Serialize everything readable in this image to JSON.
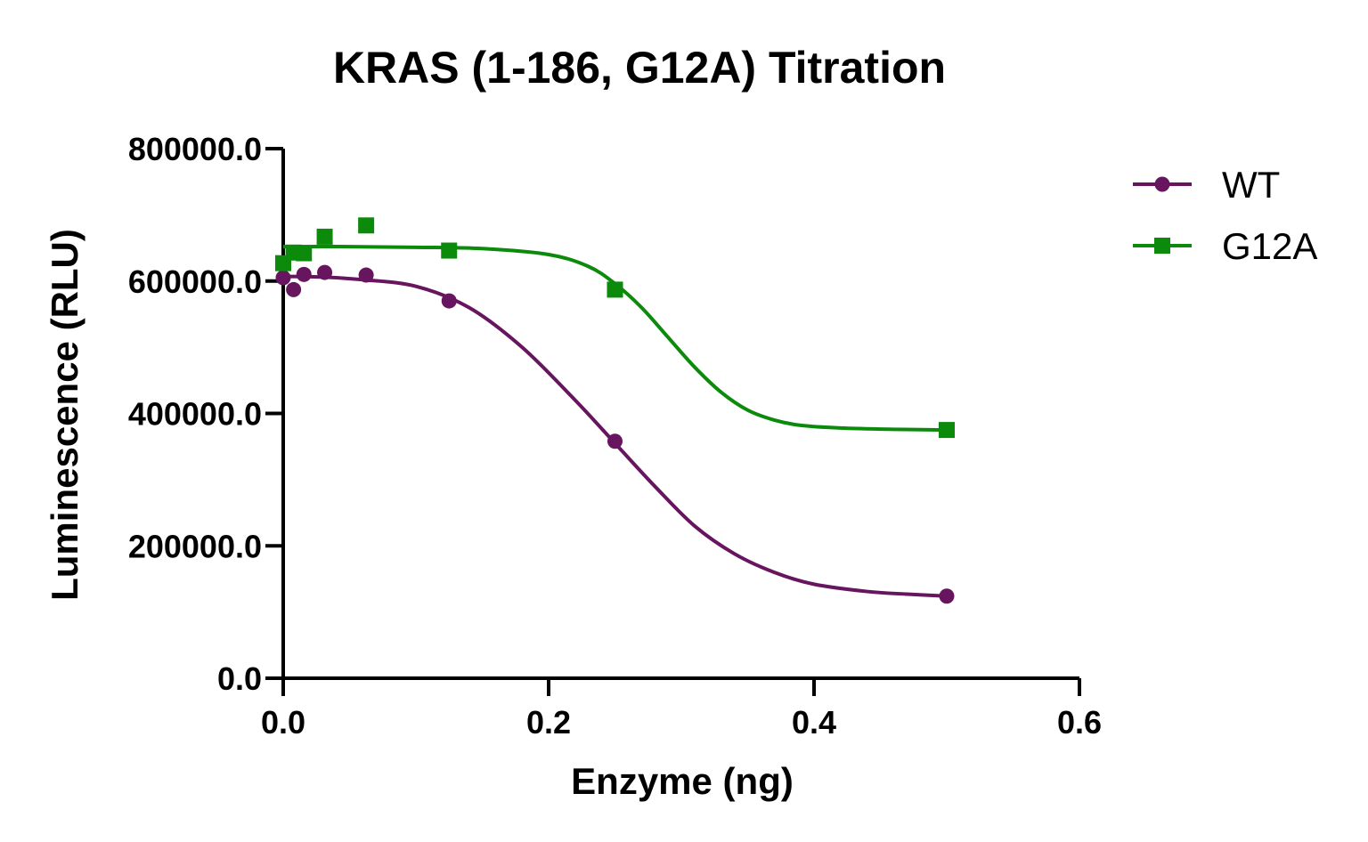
{
  "chart_data": {
    "type": "scatter",
    "title": "KRAS (1-186, G12A) Titration",
    "xlabel": "Enzyme (ng)",
    "ylabel": "Luminescence (RLU)",
    "xlim": [
      0,
      0.6
    ],
    "ylim": [
      0,
      800000
    ],
    "x_ticks": [
      0,
      0.2,
      0.4,
      0.6
    ],
    "x_tick_labels": [
      "0.0",
      "0.2",
      "0.4",
      "0.6"
    ],
    "y_ticks": [
      0,
      200000,
      400000,
      600000,
      800000
    ],
    "y_tick_labels": [
      "0.0",
      "200000.0",
      "400000.0",
      "600000.0",
      "800000.0"
    ],
    "grid": false,
    "legend_position": "top-right",
    "series": [
      {
        "name": "WT",
        "marker": "circle",
        "color": "#66155e",
        "points": [
          [
            0,
            605000
          ],
          [
            0.0078,
            587000
          ],
          [
            0.0156,
            610000
          ],
          [
            0.03125,
            613000
          ],
          [
            0.0625,
            609000
          ],
          [
            0.125,
            570000
          ],
          [
            0.25,
            358000
          ],
          [
            0.5,
            124000
          ]
        ],
        "fit_curve": [
          [
            0,
            607000
          ],
          [
            0.03,
            606000
          ],
          [
            0.06,
            602000
          ],
          [
            0.1,
            592000
          ],
          [
            0.14,
            560000
          ],
          [
            0.18,
            500000
          ],
          [
            0.22,
            420000
          ],
          [
            0.25,
            355000
          ],
          [
            0.28,
            290000
          ],
          [
            0.31,
            230000
          ],
          [
            0.34,
            188000
          ],
          [
            0.37,
            160000
          ],
          [
            0.4,
            142000
          ],
          [
            0.44,
            131000
          ],
          [
            0.47,
            127000
          ],
          [
            0.5,
            124000
          ]
        ]
      },
      {
        "name": "G12A",
        "marker": "square",
        "color": "#0b8a0b",
        "points": [
          [
            0,
            627000
          ],
          [
            0.0078,
            643000
          ],
          [
            0.0156,
            642000
          ],
          [
            0.03125,
            667000
          ],
          [
            0.0625,
            684000
          ],
          [
            0.125,
            646000
          ],
          [
            0.25,
            587000
          ],
          [
            0.5,
            375000
          ]
        ],
        "fit_curve": [
          [
            0,
            652000
          ],
          [
            0.05,
            652000
          ],
          [
            0.1,
            651000
          ],
          [
            0.15,
            649000
          ],
          [
            0.2,
            640000
          ],
          [
            0.23,
            622000
          ],
          [
            0.25,
            596000
          ],
          [
            0.27,
            560000
          ],
          [
            0.29,
            515000
          ],
          [
            0.31,
            470000
          ],
          [
            0.33,
            432000
          ],
          [
            0.35,
            405000
          ],
          [
            0.37,
            390000
          ],
          [
            0.39,
            382000
          ],
          [
            0.42,
            378000
          ],
          [
            0.46,
            376000
          ],
          [
            0.5,
            375000
          ]
        ]
      }
    ]
  }
}
